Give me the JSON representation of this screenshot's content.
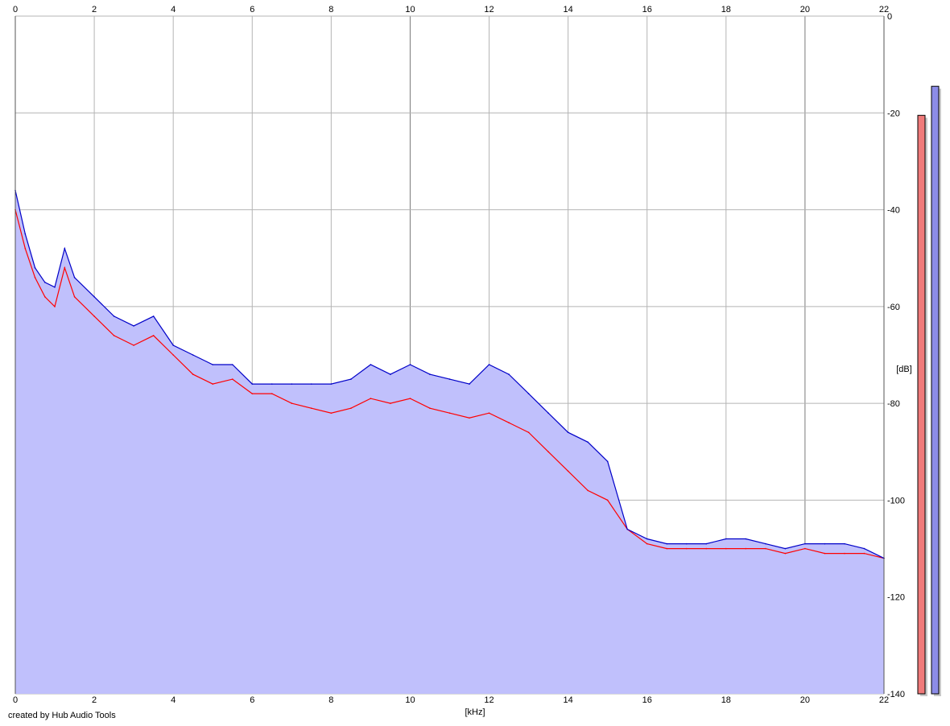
{
  "credit": "created by Hub Audio Tools",
  "colors": {
    "background": "#ffffff",
    "grid": "#b4b4b4",
    "grid_major": "#7a7a7a",
    "fill": "#c0c0fc",
    "channel_left": "#ff0000",
    "channel_right": "#0000c8",
    "meter_left": "#f07a7a",
    "meter_right": "#8c8ce8"
  },
  "chart_data": {
    "type": "line",
    "xlabel": "[kHz]",
    "ylabel": "[dB]",
    "xlim": [
      0,
      22
    ],
    "ylim": [
      -140,
      0
    ],
    "x_ticks": [
      "0",
      "2",
      "4",
      "6",
      "8",
      "10",
      "12",
      "14",
      "16",
      "18",
      "20",
      "22"
    ],
    "y_ticks": [
      "0",
      "-20",
      "-40",
      "-60",
      "-80",
      "-100",
      "-120",
      "-140"
    ],
    "grid": true,
    "series": [
      {
        "channel": "left",
        "color": "#ff0000",
        "x": [
          0,
          0.25,
          0.5,
          0.75,
          1,
          1.25,
          1.5,
          2,
          2.5,
          3,
          3.5,
          4,
          4.5,
          5,
          5.5,
          6,
          6.5,
          7,
          7.5,
          8,
          8.5,
          9,
          9.5,
          10,
          10.5,
          11,
          11.5,
          12,
          12.5,
          13,
          13.5,
          14,
          14.5,
          15,
          15.5,
          16,
          16.5,
          17,
          17.5,
          18,
          18.5,
          19,
          19.5,
          20,
          20.5,
          21,
          21.5,
          22
        ],
        "values": [
          -40,
          -48,
          -54,
          -58,
          -60,
          -52,
          -58,
          -62,
          -66,
          -68,
          -66,
          -70,
          -74,
          -76,
          -75,
          -78,
          -78,
          -80,
          -81,
          -82,
          -81,
          -79,
          -80,
          -79,
          -81,
          -82,
          -83,
          -82,
          -84,
          -86,
          -90,
          -94,
          -98,
          -100,
          -106,
          -109,
          -110,
          -110,
          -110,
          -110,
          -110,
          -110,
          -111,
          -110,
          -111,
          -111,
          -111,
          -112
        ]
      },
      {
        "channel": "right",
        "color": "#0000c8",
        "x": [
          0,
          0.25,
          0.5,
          0.75,
          1,
          1.25,
          1.5,
          2,
          2.5,
          3,
          3.5,
          4,
          4.5,
          5,
          5.5,
          6,
          6.5,
          7,
          7.5,
          8,
          8.5,
          9,
          9.5,
          10,
          10.5,
          11,
          11.5,
          12,
          12.5,
          13,
          13.5,
          14,
          14.5,
          15,
          15.5,
          16,
          16.5,
          17,
          17.5,
          18,
          18.5,
          19,
          19.5,
          20,
          20.5,
          21,
          21.5,
          22
        ],
        "values": [
          -36,
          -45,
          -52,
          -55,
          -56,
          -48,
          -54,
          -58,
          -62,
          -64,
          -62,
          -68,
          -70,
          -72,
          -72,
          -76,
          -76,
          -76,
          -76,
          -76,
          -75,
          -72,
          -74,
          -72,
          -74,
          -75,
          -76,
          -72,
          -74,
          -78,
          -82,
          -86,
          -88,
          -92,
          -106,
          -108,
          -109,
          -109,
          -109,
          -108,
          -108,
          -109,
          -110,
          -109,
          -109,
          -109,
          -110,
          -112
        ]
      }
    ],
    "peak_meters": {
      "min": -140,
      "max": 0,
      "values": [
        -20.5,
        -14.5
      ]
    }
  }
}
